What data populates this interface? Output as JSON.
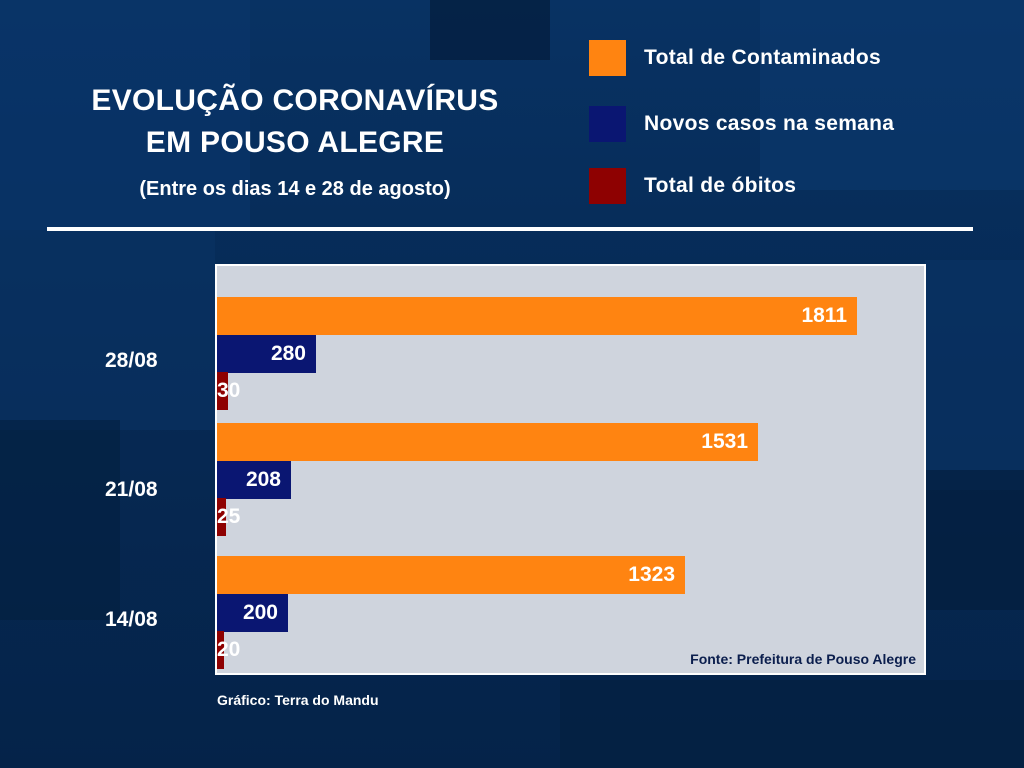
{
  "title_lines": [
    "EVOLUÇÃO CORONAVÍRUS",
    "EM POUSO ALEGRE"
  ],
  "subtitle": "(Entre os dias 14 e 28 de agosto)",
  "source": "Fonte: Prefeitura de Pouso Alegre",
  "credit": "Gráfico: Terra do Mandu",
  "colors": {
    "contaminados": "#ff8411",
    "novos": "#0a1672",
    "obitos": "#8e0101",
    "plot_bg": "#cfd4dd",
    "page_bg": "#062a52"
  },
  "chart_data": {
    "type": "bar",
    "orientation": "horizontal",
    "title": "EVOLUÇÃO CORONAVÍRUS EM POUSO ALEGRE",
    "subtitle": "(Entre os dias 14 e 28 de agosto)",
    "categories": [
      "28/08",
      "21/08",
      "14/08"
    ],
    "series": [
      {
        "name": "Total de Contaminados",
        "values": [
          1811,
          1531,
          1323
        ],
        "color": "#ff8411"
      },
      {
        "name": "Novos casos na semana",
        "values": [
          280,
          208,
          200
        ],
        "color": "#0a1672"
      },
      {
        "name": "Total de óbitos",
        "values": [
          30,
          25,
          20
        ],
        "color": "#8e0101"
      }
    ],
    "legend_position": "top-right",
    "data_labels": true,
    "grid": false
  }
}
